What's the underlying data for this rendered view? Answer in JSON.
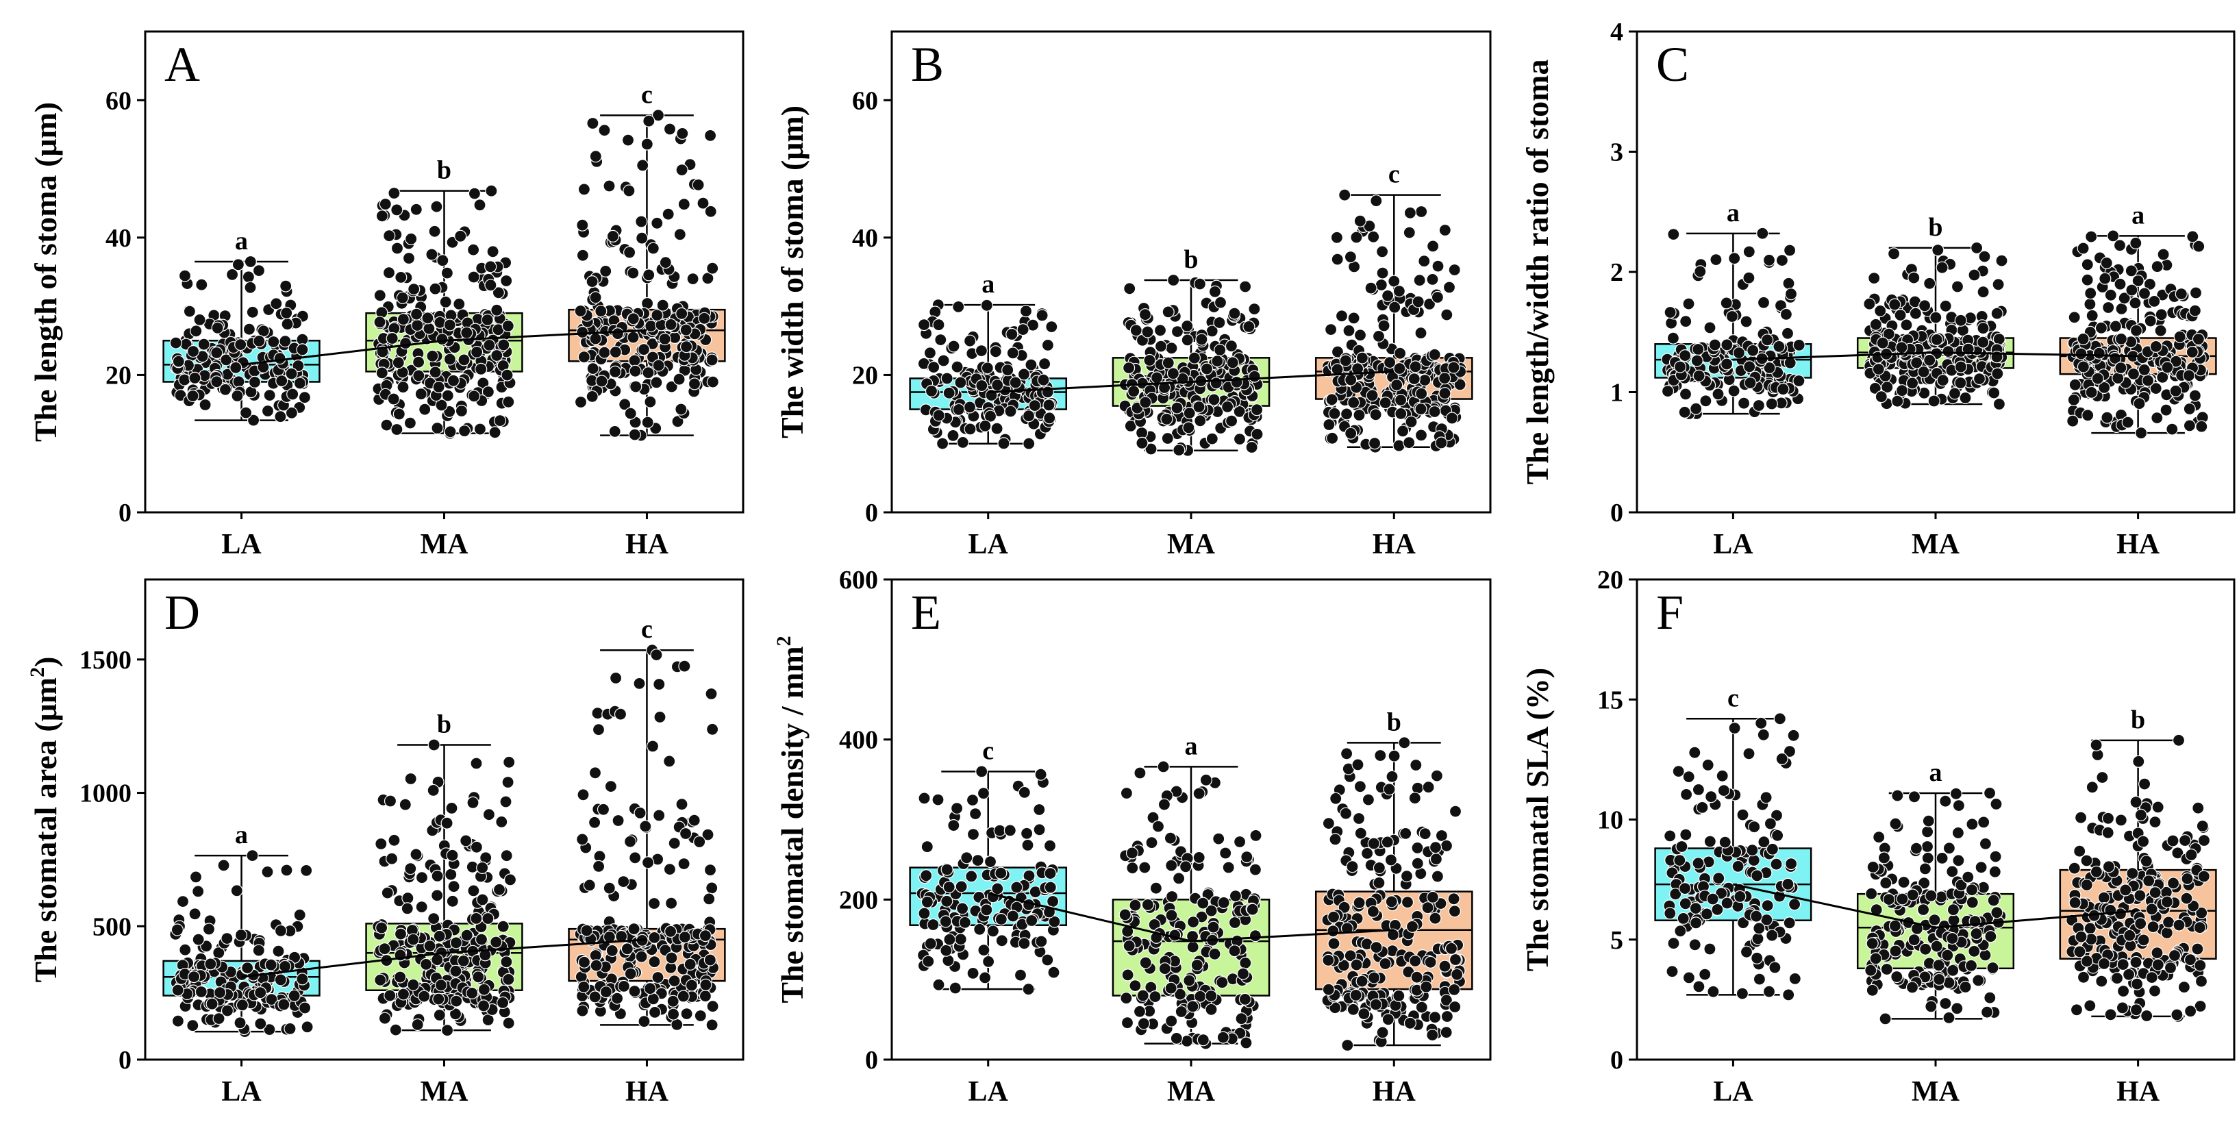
{
  "figure": {
    "colors": {
      "LA": "#7ff3f3",
      "MA": "#c9f59a",
      "HA": "#f7c39c"
    }
  },
  "chart_data": [
    {
      "type": "box",
      "panel": "A",
      "ylabel": "The length of stoma (μm)",
      "ylim": [
        0,
        70
      ],
      "yticks": [
        0,
        20,
        40,
        60
      ],
      "categories": [
        "LA",
        "MA",
        "HA"
      ],
      "series": [
        {
          "name": "LA",
          "min": 13.4,
          "q1": 19,
          "median": 21.5,
          "q3": 25,
          "max": 36.5,
          "letter": "a",
          "n": 180
        },
        {
          "name": "MA",
          "min": 11.5,
          "q1": 20.5,
          "median": 25,
          "q3": 29,
          "max": 46.8,
          "letter": "b",
          "n": 260
        },
        {
          "name": "HA",
          "min": 11.2,
          "q1": 22,
          "median": 26.5,
          "q3": 29.5,
          "max": 57.8,
          "letter": "c",
          "n": 260
        }
      ]
    },
    {
      "type": "box",
      "panel": "B",
      "ylabel": "The width of stoma (μm)",
      "ylim": [
        0,
        70
      ],
      "yticks": [
        0,
        20,
        40,
        60
      ],
      "categories": [
        "LA",
        "MA",
        "HA"
      ],
      "series": [
        {
          "name": "LA",
          "min": 10,
          "q1": 15,
          "median": 17.5,
          "q3": 19.5,
          "max": 30.2,
          "letter": "a",
          "n": 180
        },
        {
          "name": "MA",
          "min": 9,
          "q1": 15.5,
          "median": 19,
          "q3": 22.5,
          "max": 33.8,
          "letter": "b",
          "n": 260
        },
        {
          "name": "HA",
          "min": 9.5,
          "q1": 16.5,
          "median": 20.5,
          "q3": 22.5,
          "max": 46.2,
          "letter": "c",
          "n": 260
        }
      ]
    },
    {
      "type": "box",
      "panel": "C",
      "ylabel": "The length/width ratio of stoma",
      "ylim": [
        0,
        4
      ],
      "yticks": [
        0,
        1,
        2,
        3,
        4
      ],
      "categories": [
        "LA",
        "MA",
        "HA"
      ],
      "series": [
        {
          "name": "LA",
          "min": 0.82,
          "q1": 1.12,
          "median": 1.27,
          "q3": 1.4,
          "max": 2.32,
          "letter": "a",
          "n": 180
        },
        {
          "name": "MA",
          "min": 0.9,
          "q1": 1.2,
          "median": 1.33,
          "q3": 1.45,
          "max": 2.2,
          "letter": "b",
          "n": 260
        },
        {
          "name": "HA",
          "min": 0.66,
          "q1": 1.15,
          "median": 1.3,
          "q3": 1.45,
          "max": 2.3,
          "letter": "a",
          "n": 260
        }
      ]
    },
    {
      "type": "box",
      "panel": "D",
      "ylabel_main": "The stomatal area (μm",
      "ylabel_sup": "2",
      "ylabel_end": ")",
      "ylim": [
        0,
        1800
      ],
      "yticks": [
        0,
        500,
        1000,
        1500
      ],
      "categories": [
        "LA",
        "MA",
        "HA"
      ],
      "series": [
        {
          "name": "LA",
          "min": 105,
          "q1": 240,
          "median": 310,
          "q3": 370,
          "max": 765,
          "letter": "a",
          "n": 180
        },
        {
          "name": "MA",
          "min": 110,
          "q1": 260,
          "median": 400,
          "q3": 510,
          "max": 1180,
          "letter": "b",
          "n": 260
        },
        {
          "name": "HA",
          "min": 130,
          "q1": 295,
          "median": 450,
          "q3": 490,
          "max": 1535,
          "letter": "c",
          "n": 260
        }
      ]
    },
    {
      "type": "box",
      "panel": "E",
      "ylabel_main": "The stomatal density / mm",
      "ylabel_sup": "2",
      "ylabel_end": "",
      "ylim": [
        0,
        600
      ],
      "yticks": [
        0,
        200,
        400,
        600
      ],
      "categories": [
        "LA",
        "MA",
        "HA"
      ],
      "series": [
        {
          "name": "LA",
          "min": 88,
          "q1": 168,
          "median": 208,
          "q3": 240,
          "max": 360,
          "letter": "c",
          "n": 150
        },
        {
          "name": "MA",
          "min": 20,
          "q1": 80,
          "median": 148,
          "q3": 200,
          "max": 366,
          "letter": "a",
          "n": 200
        },
        {
          "name": "HA",
          "min": 18,
          "q1": 88,
          "median": 162,
          "q3": 210,
          "max": 396,
          "letter": "b",
          "n": 240
        }
      ]
    },
    {
      "type": "box",
      "panel": "F",
      "ylabel": "The stomatal SLA (%)",
      "ylim": [
        0,
        20
      ],
      "yticks": [
        0,
        5,
        10,
        15,
        20
      ],
      "categories": [
        "LA",
        "MA",
        "HA"
      ],
      "series": [
        {
          "name": "LA",
          "min": 2.7,
          "q1": 5.8,
          "median": 7.3,
          "q3": 8.8,
          "max": 14.2,
          "letter": "c",
          "n": 150
        },
        {
          "name": "MA",
          "min": 1.7,
          "q1": 3.8,
          "median": 5.5,
          "q3": 6.9,
          "max": 11.1,
          "letter": "a",
          "n": 200
        },
        {
          "name": "HA",
          "min": 1.8,
          "q1": 4.2,
          "median": 6.2,
          "q3": 7.9,
          "max": 13.3,
          "letter": "b",
          "n": 240
        }
      ]
    }
  ]
}
